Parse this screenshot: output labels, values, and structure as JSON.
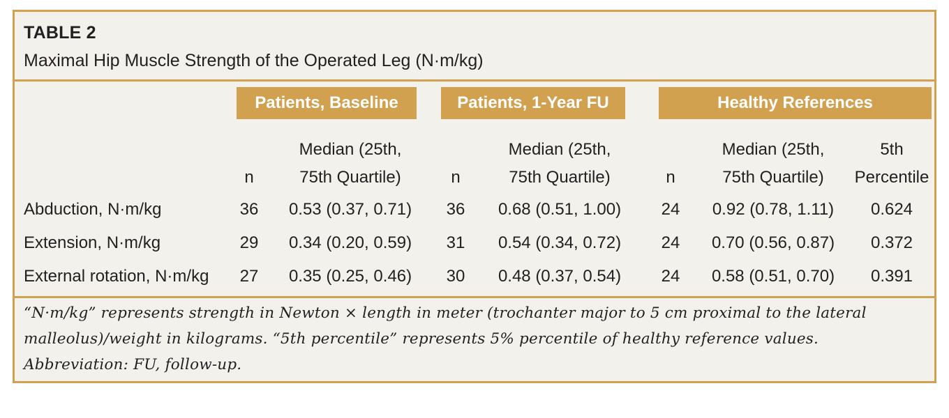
{
  "table": {
    "title": "TABLE 2",
    "subtitle": "Maximal Hip Muscle Strength of the Operated Leg (N·m/kg)",
    "groups": [
      "Patients, Baseline",
      "Patients, 1-Year FU",
      "Healthy References"
    ],
    "columns": {
      "n": "n",
      "median_line1": "Median (25th,",
      "median_line2": "75th Quartile)",
      "pct_line1": "5th",
      "pct_line2": "Percentile"
    },
    "rows": [
      {
        "label": "Abduction, N·m/kg",
        "b_n": "36",
        "b_med": "0.53 (0.37, 0.71)",
        "f_n": "36",
        "f_med": "0.68 (0.51, 1.00)",
        "h_n": "24",
        "h_med": "0.92 (0.78, 1.11)",
        "h_pct": "0.624"
      },
      {
        "label": "Extension, N·m/kg",
        "b_n": "29",
        "b_med": "0.34 (0.20, 0.59)",
        "f_n": "31",
        "f_med": "0.54 (0.34, 0.72)",
        "h_n": "24",
        "h_med": "0.70 (0.56, 0.87)",
        "h_pct": "0.372"
      },
      {
        "label": "External rotation, N·m/kg",
        "b_n": "27",
        "b_med": "0.35 (0.25, 0.46)",
        "f_n": "30",
        "f_med": "0.48 (0.37, 0.54)",
        "h_n": "24",
        "h_med": "0.58 (0.51, 0.70)",
        "h_pct": "0.391"
      }
    ],
    "footnote": [
      "“N·m/kg” represents strength in Newton × length in meter (trochanter major to 5 cm proximal to the lateral",
      "malleolus)/weight in kilograms. “5th percentile” represents 5% percentile of healthy reference values.",
      "Abbreviation: FU, follow-up."
    ]
  },
  "colors": {
    "accent": "#d1a150",
    "panel_bg": "#f3f1ec",
    "text": "#231f20"
  }
}
